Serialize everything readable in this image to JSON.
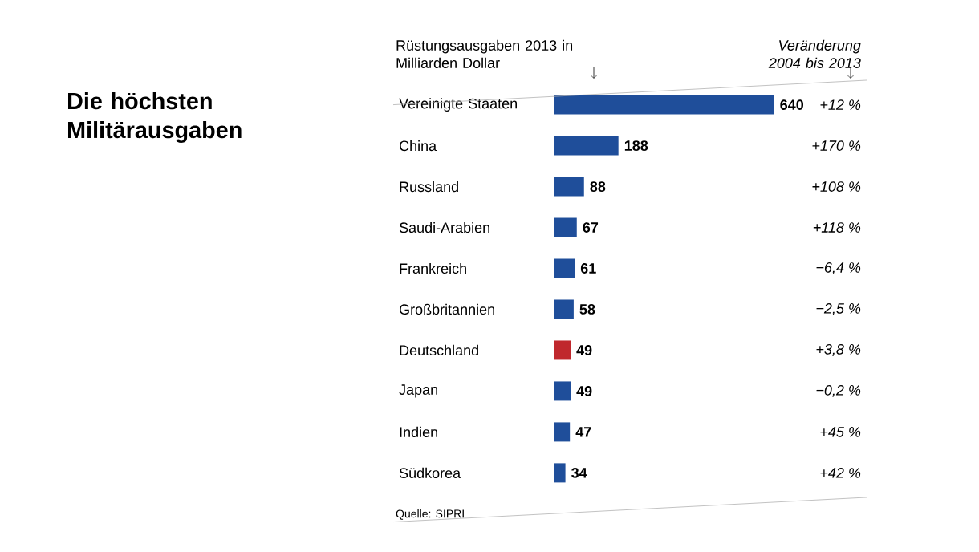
{
  "chart_data": {
    "type": "bar",
    "orientation": "horizontal",
    "title": "Die höchsten Militärausgaben",
    "categories": [
      "Vereinigte Staaten",
      "China",
      "Russland",
      "Saudi-Arabien",
      "Frankreich",
      "Großbritannien",
      "Deutschland",
      "Japan",
      "Indien",
      "Südkorea"
    ],
    "values": [
      640,
      188,
      88,
      67,
      61,
      58,
      49,
      49,
      47,
      34
    ],
    "colors": [
      "#1f4e9a",
      "#1f4e9a",
      "#1f4e9a",
      "#1f4e9a",
      "#1f4e9a",
      "#1f4e9a",
      "#c0282d",
      "#1f4e9a",
      "#1f4e9a",
      "#1f4e9a"
    ],
    "data_labels": true,
    "annotations": [
      "Rüstungsausgaben 2013 in Milliarden Dollar",
      "Veränderung 2004 bis 2013",
      "Quelle: SIPRI",
      "+12 %",
      "+170 %",
      "+108 %",
      "+118 %",
      "−6,4 %",
      "−2,5 %",
      "+3,8 %",
      "−0,2 %",
      "+45 %",
      "+42 %"
    ]
  }
}
